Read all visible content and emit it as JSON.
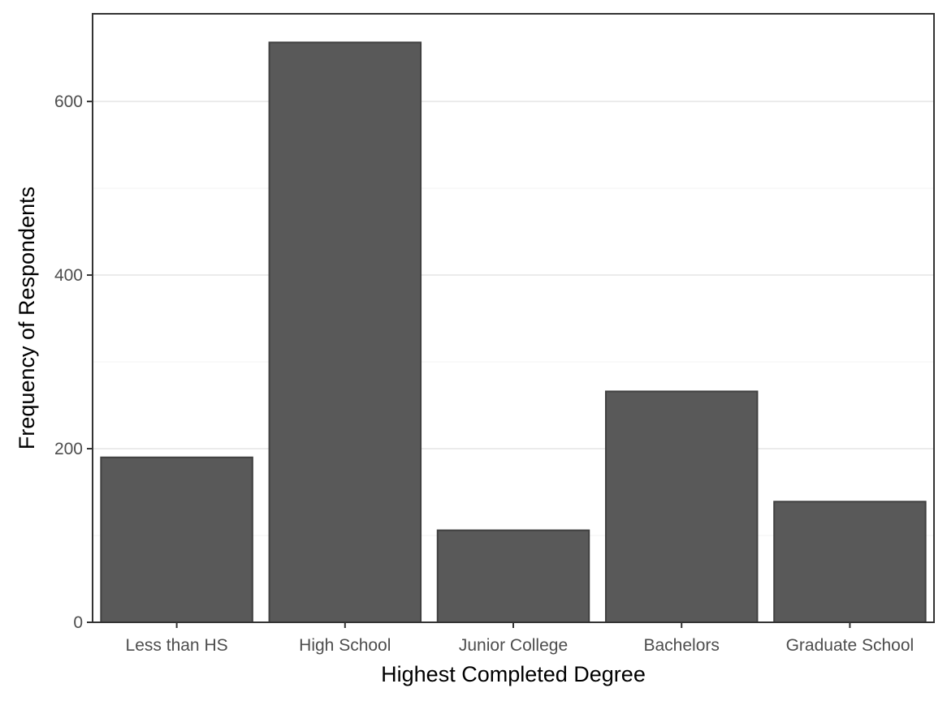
{
  "chart_data": {
    "type": "bar",
    "categories": [
      "Less than HS",
      "High School",
      "Junior College",
      "Bachelors",
      "Graduate School"
    ],
    "values": [
      190,
      668,
      106,
      266,
      139
    ],
    "title": "",
    "xlabel": "Highest Completed Degree",
    "ylabel": "Frequency of Respondents",
    "ylim": [
      0,
      701
    ],
    "yticks": [
      0,
      200,
      400,
      600
    ],
    "yticks_minor": [
      100,
      300,
      500
    ],
    "grid": true,
    "colors": {
      "bar_fill": "#595959",
      "bar_outline": "#404040",
      "grid": "#ebebeb",
      "border": "#333333"
    }
  }
}
